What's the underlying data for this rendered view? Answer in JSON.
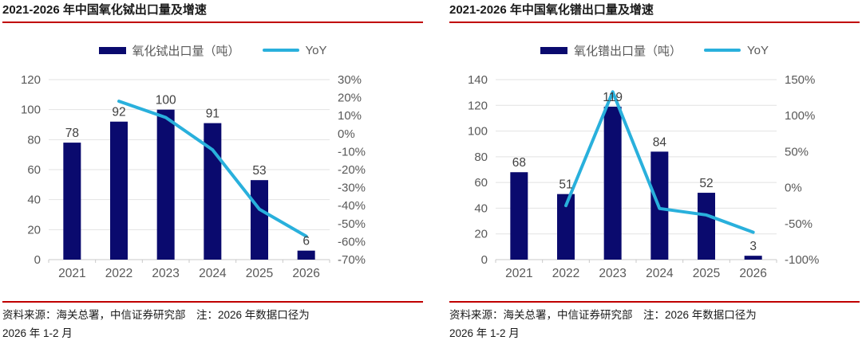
{
  "colors": {
    "bar": "#0A0A6E",
    "line": "#29B0DC",
    "rule_red": "#C00000",
    "grid": "#E2E2E2",
    "baseline": "#C9C9C9",
    "axis_text": "#595959",
    "bar_label_text": "#3F3F3F",
    "title_text": "#1A1A1A"
  },
  "charts": [
    {
      "title": "2021-2026 年中国氧化铽出口量及增速",
      "legend": {
        "bar_label": "氧化铽出口量（吨）",
        "line_label": "YoY"
      },
      "footer": {
        "line1": "资料来源：海关总署，中信证券研究部　注：2026 年数据口径为",
        "line2": "2026 年 1-2 月"
      },
      "chart_data": {
        "type": "bar+line",
        "title": "2021-2026 年中国氧化铽出口量及增速",
        "categories": [
          "2021",
          "2022",
          "2023",
          "2024",
          "2025",
          "2026"
        ],
        "bar_series_name": "氧化铽出口量（吨）",
        "bar_values": [
          78,
          92,
          100,
          91,
          53,
          6
        ],
        "line_series_name": "YoY",
        "yoy_values_pct": [
          null,
          18,
          9,
          -9,
          -42,
          -57
        ],
        "left_axis": {
          "min": 0,
          "max": 120,
          "ticks_bottom_to_top": [
            "0",
            "20",
            "40",
            "60",
            "80",
            "100",
            "120"
          ]
        },
        "right_axis": {
          "min": -70,
          "max": 30,
          "ticks_top_to_bottom": [
            "30%",
            "20%",
            "10%",
            "0%",
            "-10%",
            "-20%",
            "-30%",
            "-40%",
            "-50%",
            "-60%",
            "-70%"
          ]
        },
        "grid": "horizontal",
        "legend_position": "top-center"
      }
    },
    {
      "title": "2021-2026 年中国氧化镨出口量及增速",
      "legend": {
        "bar_label": "氧化镨出口量（吨）",
        "line_label": "YoY"
      },
      "footer": {
        "line1": "资料来源：海关总署，中信证券研究部　注：2026 年数据口径为",
        "line2": "2026 年 1-2 月"
      },
      "chart_data": {
        "type": "bar+line",
        "title": "2021-2026 年中国氧化镨出口量及增速",
        "categories": [
          "2021",
          "2022",
          "2023",
          "2024",
          "2025",
          "2026"
        ],
        "bar_series_name": "氧化镨出口量（吨）",
        "bar_values": [
          68,
          51,
          119,
          84,
          52,
          3
        ],
        "line_series_name": "YoY",
        "yoy_values_pct": [
          null,
          -25,
          133,
          -29,
          -38,
          -62
        ],
        "left_axis": {
          "min": 0,
          "max": 140,
          "ticks_bottom_to_top": [
            "0",
            "20",
            "40",
            "60",
            "80",
            "100",
            "120",
            "140"
          ]
        },
        "right_axis": {
          "min": -100,
          "max": 150,
          "ticks_top_to_bottom": [
            "150%",
            "100%",
            "50%",
            "0%",
            "-50%",
            "-100%"
          ]
        },
        "grid": "horizontal",
        "legend_position": "top-center"
      }
    }
  ]
}
